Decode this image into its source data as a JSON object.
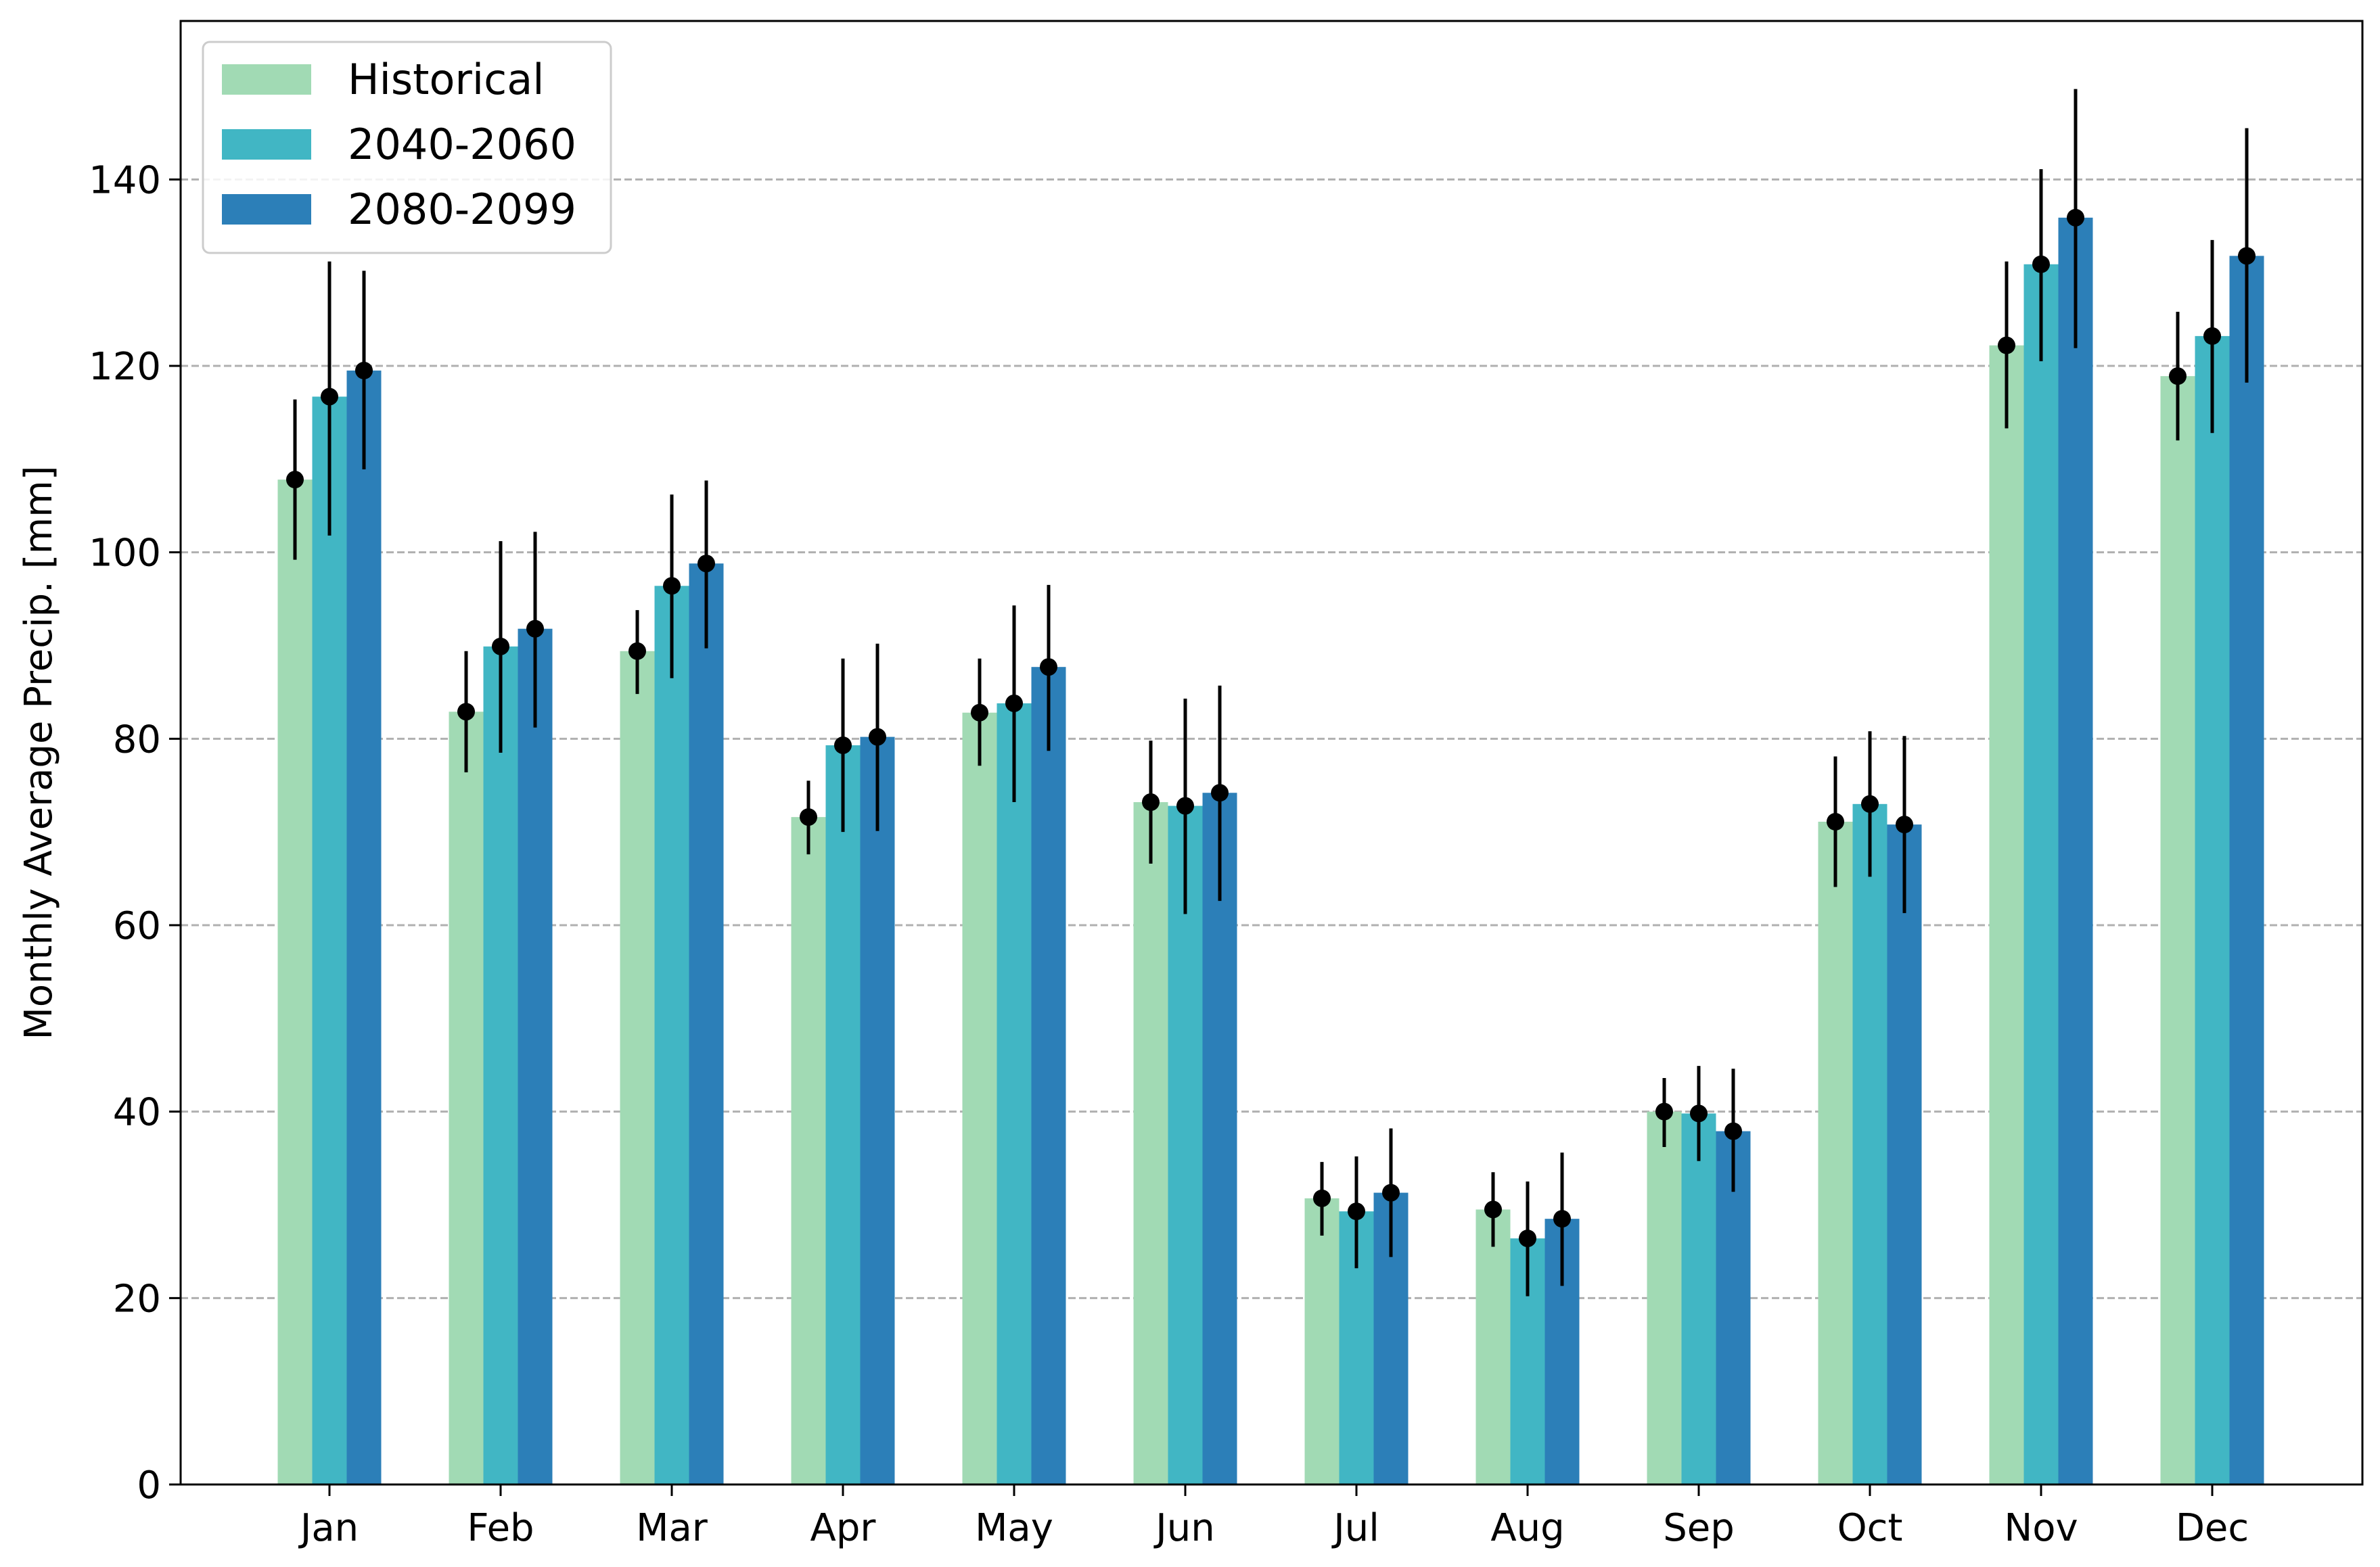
{
  "chart_data": {
    "type": "bar",
    "title": "",
    "xlabel": "",
    "ylabel": "Monthly Average Precip. [mm]",
    "ylim": [
      0,
      157
    ],
    "yticks": [
      0,
      20,
      40,
      60,
      80,
      100,
      120,
      140
    ],
    "grid": "horizontal dashed",
    "legend_position": "top-left",
    "error_bars": true,
    "categories": [
      "Jan",
      "Feb",
      "Mar",
      "Apr",
      "May",
      "Jun",
      "Jul",
      "Aug",
      "Sep",
      "Oct",
      "Nov",
      "Dec"
    ],
    "series": [
      {
        "name": "Historical",
        "color": "#a1dab4",
        "values": [
          107.8,
          82.9,
          89.4,
          71.6,
          82.8,
          73.2,
          30.7,
          29.5,
          40.0,
          71.1,
          122.2,
          118.9
        ],
        "err_low": [
          99.2,
          76.4,
          84.8,
          67.6,
          77.1,
          66.6,
          26.7,
          25.5,
          36.2,
          64.1,
          113.3,
          112.0
        ],
        "err_high": [
          116.4,
          89.4,
          93.8,
          75.5,
          88.6,
          79.8,
          34.6,
          33.5,
          43.6,
          78.1,
          131.2,
          125.8
        ]
      },
      {
        "name": "2040-2060",
        "color": "#41b6c4",
        "values": [
          116.7,
          89.9,
          96.4,
          79.3,
          83.8,
          72.8,
          29.3,
          26.4,
          39.8,
          73.0,
          130.9,
          123.2
        ],
        "err_low": [
          101.8,
          78.5,
          86.5,
          70.0,
          73.2,
          61.2,
          23.2,
          20.2,
          34.7,
          65.2,
          120.5,
          112.8
        ],
        "err_high": [
          131.2,
          101.2,
          106.2,
          88.6,
          94.3,
          84.3,
          35.2,
          32.5,
          44.9,
          80.8,
          141.1,
          133.5
        ]
      },
      {
        "name": "2080-2099",
        "color": "#2c7fb8",
        "values": [
          119.5,
          91.8,
          98.8,
          80.2,
          87.7,
          74.2,
          31.3,
          28.5,
          37.9,
          70.8,
          135.9,
          131.8
        ],
        "err_low": [
          108.9,
          81.2,
          89.7,
          70.1,
          78.7,
          62.6,
          24.4,
          21.3,
          31.4,
          61.3,
          121.9,
          118.2
        ],
        "err_high": [
          130.2,
          102.2,
          107.7,
          90.2,
          96.5,
          85.7,
          38.2,
          35.6,
          44.6,
          80.3,
          149.7,
          145.5
        ]
      }
    ]
  }
}
